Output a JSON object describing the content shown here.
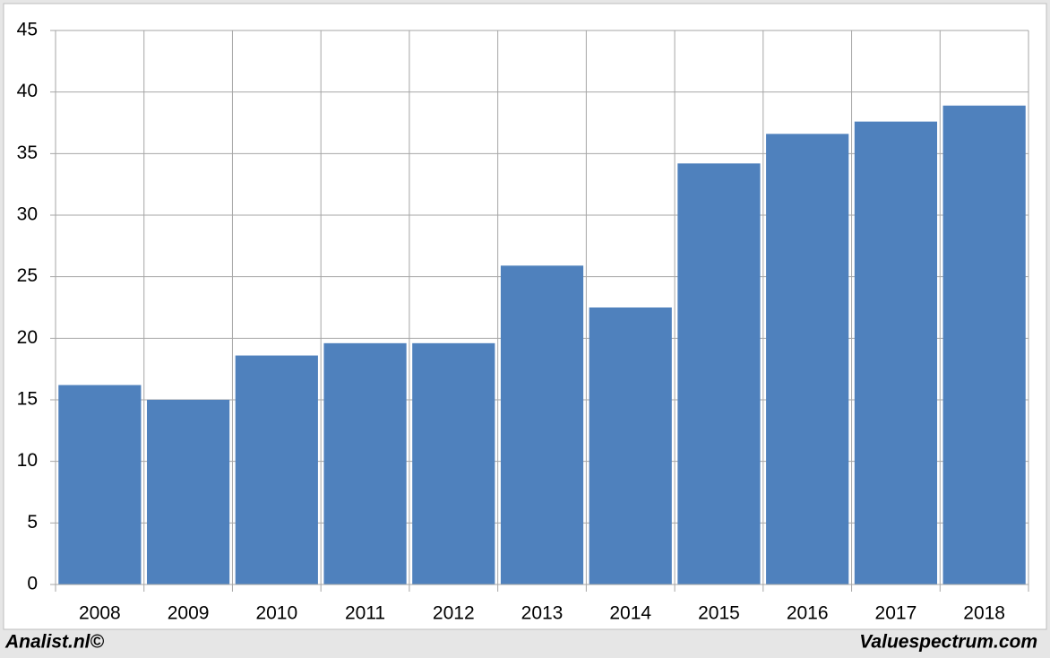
{
  "chart_data": {
    "type": "bar",
    "categories": [
      "2008",
      "2009",
      "2010",
      "2011",
      "2012",
      "2013",
      "2014",
      "2015",
      "2016",
      "2017",
      "2018"
    ],
    "values": [
      16.2,
      15.0,
      18.6,
      19.6,
      19.6,
      25.9,
      22.5,
      34.2,
      36.6,
      37.6,
      38.9
    ],
    "color": "#4f81bd",
    "ylim": [
      0,
      45
    ],
    "yticks": [
      0,
      5,
      10,
      15,
      20,
      25,
      30,
      35,
      40,
      45
    ],
    "grid": true,
    "footer_left": "Analist.nl©",
    "footer_right": "Valuespectrum.com"
  }
}
